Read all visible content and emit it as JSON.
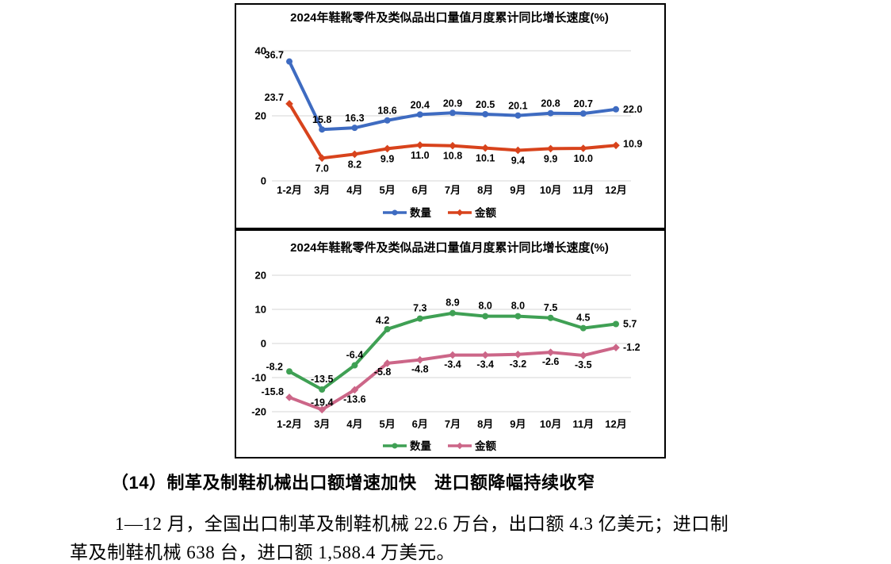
{
  "page": {
    "background": "#ffffff"
  },
  "chart_data": [
    {
      "type": "line",
      "title": "2024年鞋靴零件及类似品出口量值月度累计同比增长速度(%)",
      "categories": [
        "1-2月",
        "3月",
        "4月",
        "5月",
        "6月",
        "7月",
        "8月",
        "9月",
        "10月",
        "11月",
        "12月"
      ],
      "yticks": [
        40,
        20,
        0
      ],
      "ylim": [
        0,
        40
      ],
      "grid": true,
      "legend_position": "bottom",
      "label_format": "1dp",
      "series": [
        {
          "name": "数量",
          "color": "#3E6BC1",
          "marker": "circle",
          "values": [
            36.7,
            15.8,
            16.3,
            18.6,
            20.4,
            20.9,
            20.5,
            20.1,
            20.8,
            20.7,
            22.0
          ]
        },
        {
          "name": "金额",
          "color": "#D8431C",
          "marker": "diamond",
          "values": [
            23.7,
            7.0,
            8.2,
            9.9,
            11.0,
            10.8,
            10.1,
            9.4,
            9.9,
            10.0,
            10.9
          ]
        }
      ]
    },
    {
      "type": "line",
      "title": "2024年鞋靴零件及类似品进口量值月度累计同比增长速度(%)",
      "categories": [
        "1-2月",
        "3月",
        "4月",
        "5月",
        "6月",
        "7月",
        "8月",
        "9月",
        "10月",
        "11月",
        "12月"
      ],
      "yticks": [
        20,
        10,
        0,
        -10,
        -20
      ],
      "ylim": [
        -20,
        20
      ],
      "grid": true,
      "legend_position": "bottom",
      "label_format": "1dp",
      "series": [
        {
          "name": "数量",
          "color": "#3FA054",
          "marker": "circle",
          "values": [
            -8.2,
            -13.5,
            -6.4,
            4.2,
            7.3,
            8.9,
            8.0,
            8.0,
            7.5,
            4.5,
            5.7
          ]
        },
        {
          "name": "金额",
          "color": "#CC6688",
          "marker": "diamond",
          "values": [
            -15.8,
            -19.4,
            -13.6,
            -5.8,
            -4.8,
            -3.4,
            -3.4,
            -3.2,
            -2.6,
            -3.5,
            -1.2
          ]
        }
      ]
    }
  ],
  "text": {
    "heading": "（14）制革及制鞋机械出口额增速加快　进口额降幅持续收窄",
    "paragraph_lines": [
      "1—12 月，全国出口制革及制鞋机械 22.6 万台，出口额 4.3 亿美元；进口制",
      "革及制鞋机械 638 台，进口额 1,588.4 万美元。"
    ]
  }
}
